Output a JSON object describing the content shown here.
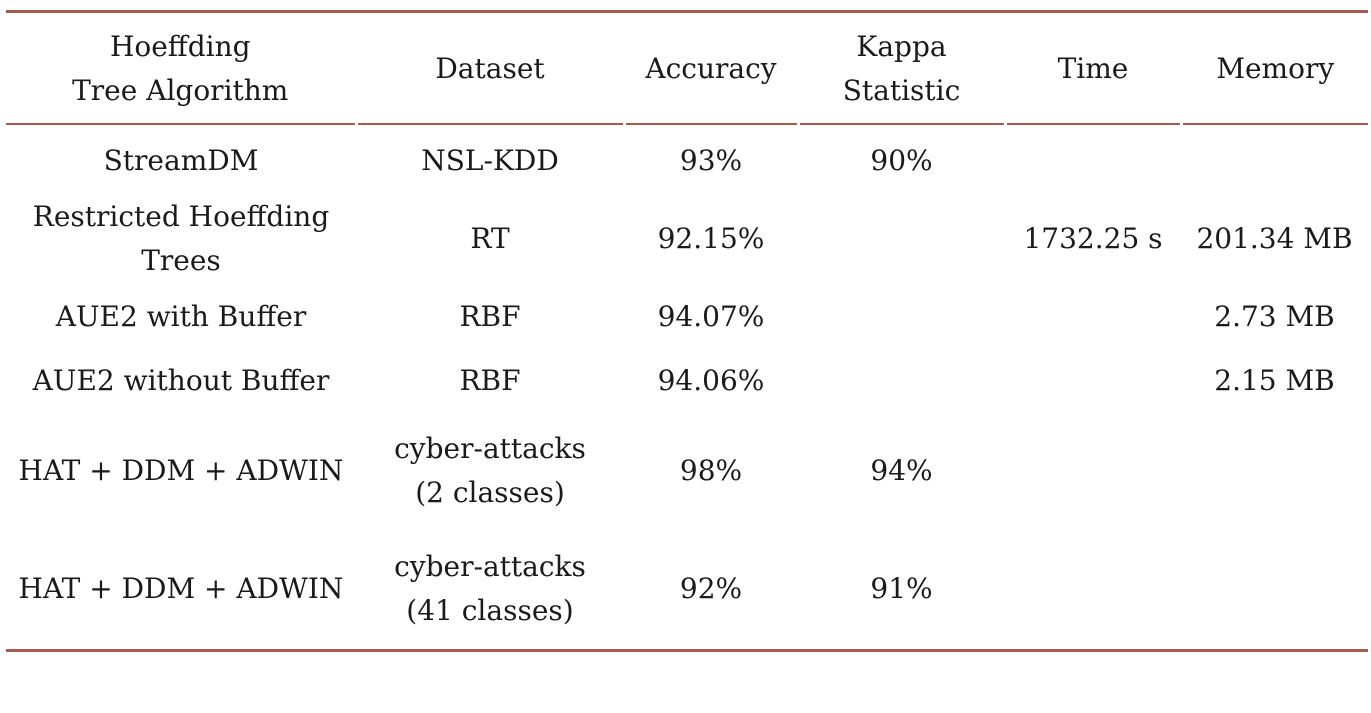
{
  "table": {
    "headers": [
      "Hoeffding\nTree Algorithm",
      "Dataset",
      "Accuracy",
      "Kappa\nStatistic",
      "Time",
      "Memory"
    ],
    "rows": [
      [
        "StreamDM",
        "NSL-KDD",
        "93%",
        "90%",
        "",
        ""
      ],
      [
        "Restricted Hoeffding\nTrees",
        "RT",
        "92.15%",
        "",
        "1732.25 s",
        "201.34 MB"
      ],
      [
        "AUE2 with Buffer",
        "RBF",
        "94.07%",
        "",
        "",
        "2.73 MB"
      ],
      [
        "AUE2 without Buffer",
        "RBF",
        "94.06%",
        "",
        "",
        "2.15 MB"
      ],
      [
        "HAT + DDM + ADWIN",
        "cyber-attacks\n(2 classes)",
        "98%",
        "94%",
        "",
        ""
      ],
      [
        "HAT + DDM + ADWIN",
        "cyber-attacks\n(41 classes)",
        "92%",
        "91%",
        "",
        ""
      ]
    ]
  },
  "colors": {
    "rule": "#a65a50",
    "text": "#1a1a1a",
    "background": "#ffffff"
  }
}
